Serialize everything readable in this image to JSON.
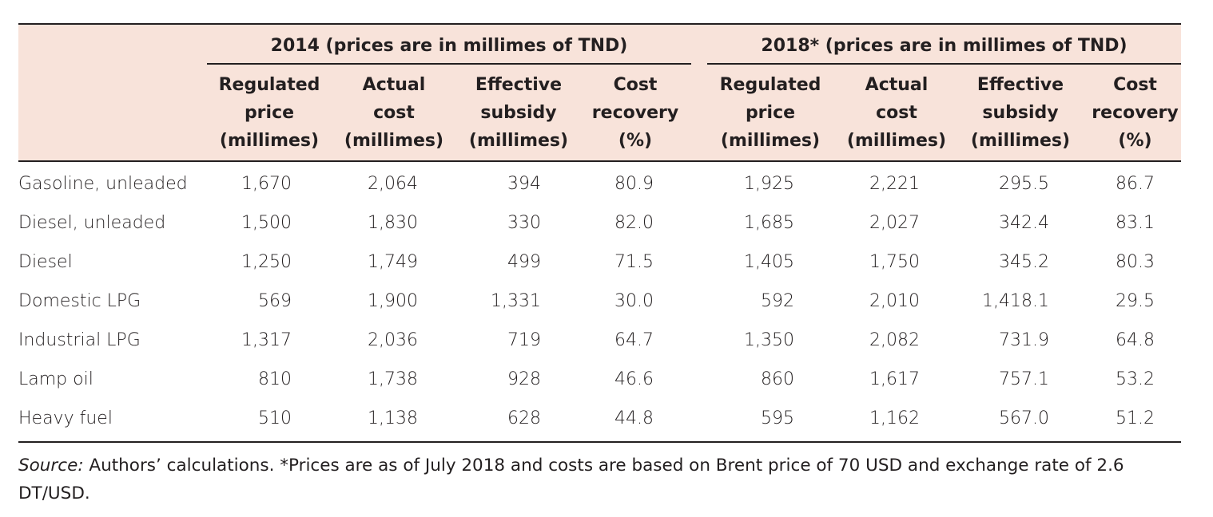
{
  "table": {
    "groups": [
      {
        "title": "2014 (prices are in millimes of TND)"
      },
      {
        "title": "2018* (prices are in millimes of TND)"
      }
    ],
    "columns": [
      {
        "lines": [
          "Regulated",
          "price",
          "(millimes)"
        ]
      },
      {
        "lines": [
          "Actual",
          "cost",
          "(millimes)"
        ]
      },
      {
        "lines": [
          "Effective",
          "subsidy",
          "(millimes)"
        ]
      },
      {
        "lines": [
          "Cost",
          "recovery",
          "(%)"
        ]
      },
      {
        "lines": [
          "Regulated",
          "price",
          "(millimes)"
        ]
      },
      {
        "lines": [
          "Actual",
          "cost",
          "(millimes)"
        ]
      },
      {
        "lines": [
          "Effective",
          "subsidy",
          "(millimes)"
        ]
      },
      {
        "lines": [
          "Cost",
          "recovery",
          "(%)"
        ]
      }
    ],
    "rows": [
      {
        "label": "Gasoline, unleaded",
        "values": [
          "1,670",
          "2,064",
          "394",
          "80.9",
          "1,925",
          "2,221",
          "295.5",
          "86.7"
        ]
      },
      {
        "label": "Diesel, unleaded",
        "values": [
          "1,500",
          "1,830",
          "330",
          "82.0",
          "1,685",
          "2,027",
          "342.4",
          "83.1"
        ]
      },
      {
        "label": "Diesel",
        "values": [
          "1,250",
          "1,749",
          "499",
          "71.5",
          "1,405",
          "1,750",
          "345.2",
          "80.3"
        ]
      },
      {
        "label": "Domestic LPG",
        "values": [
          "569",
          "1,900",
          "1,331",
          "30.0",
          "592",
          "2,010",
          "1,418.1",
          "29.5"
        ]
      },
      {
        "label": "Industrial LPG",
        "values": [
          "1,317",
          "2,036",
          "719",
          "64.7",
          "1,350",
          "2,082",
          "731.9",
          "64.8"
        ]
      },
      {
        "label": "Lamp oil",
        "values": [
          "810",
          "1,738",
          "928",
          "46.6",
          "860",
          "1,617",
          "757.1",
          "53.2"
        ]
      },
      {
        "label": "Heavy fuel",
        "values": [
          "510",
          "1,138",
          "628",
          "44.8",
          "595",
          "1,162",
          "567.0",
          "51.2"
        ]
      }
    ]
  },
  "source": {
    "label": "Source:",
    "text": " Authors’ calculations. *Prices are as of July 2018 and costs are based on Brent price of 70 USD and exchange rate of 2.6 DT/USD."
  }
}
